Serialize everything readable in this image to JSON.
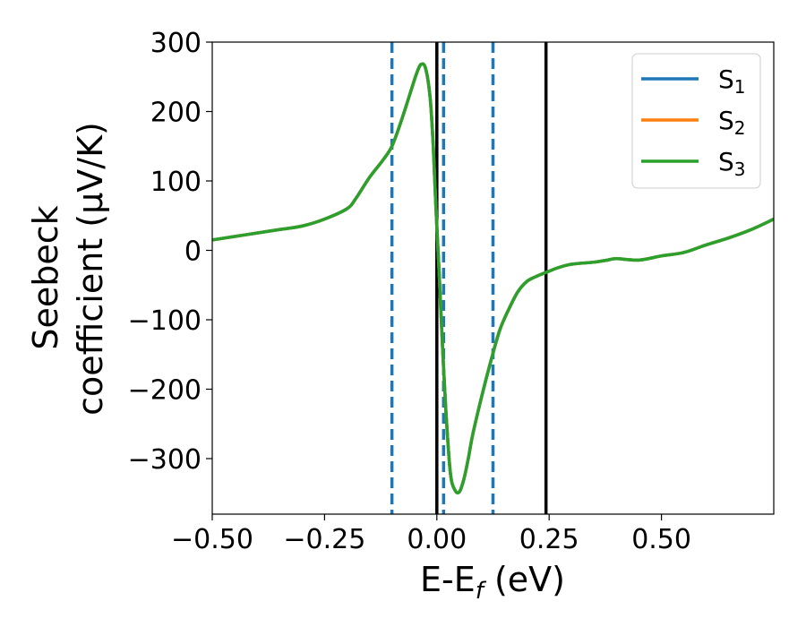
{
  "chart_data": {
    "type": "line",
    "xlabel": {
      "main": "E-E",
      "sub": "f",
      "suffix": " (eV)"
    },
    "ylabel": {
      "line1": "Seebeck",
      "line2": "coefficient  (μV/K)"
    },
    "xlim": [
      -0.5,
      0.75
    ],
    "ylim": [
      -380,
      300
    ],
    "xticks": [
      -0.5,
      -0.25,
      0.0,
      0.25,
      0.5
    ],
    "xtick_labels": [
      "−0.50",
      "−0.25",
      "0.00",
      "0.25",
      "0.50"
    ],
    "yticks": [
      300,
      200,
      100,
      0,
      -100,
      -200,
      -300
    ],
    "ytick_labels": [
      "300",
      "200",
      "100",
      "0",
      "−100",
      "−200",
      "−300"
    ],
    "legend_position": "top-right",
    "series": [
      {
        "name": "S",
        "sub": "1",
        "color": "#1f77b4"
      },
      {
        "name": "S",
        "sub": "2",
        "color": "#ff7f0e"
      },
      {
        "name": "S",
        "sub": "3",
        "color": "#2ca02c"
      }
    ],
    "curve": {
      "x": [
        -0.5,
        -0.45,
        -0.4,
        -0.35,
        -0.3,
        -0.25,
        -0.2,
        -0.18,
        -0.15,
        -0.12,
        -0.1,
        -0.08,
        -0.06,
        -0.045,
        -0.035,
        -0.025,
        -0.015,
        -0.008,
        -0.002,
        0.005,
        0.012,
        0.02,
        0.03,
        0.04,
        0.05,
        0.06,
        0.07,
        0.08,
        0.1,
        0.12,
        0.14,
        0.16,
        0.18,
        0.2,
        0.22,
        0.25,
        0.27,
        0.3,
        0.35,
        0.38,
        0.4,
        0.45,
        0.5,
        0.55,
        0.6,
        0.65,
        0.7,
        0.75
      ],
      "y": [
        15,
        20,
        25,
        30,
        35,
        45,
        60,
        75,
        105,
        130,
        150,
        185,
        225,
        255,
        268,
        262,
        220,
        150,
        60,
        -30,
        -130,
        -230,
        -320,
        -345,
        -348,
        -330,
        -300,
        -265,
        -210,
        -160,
        -115,
        -85,
        -60,
        -45,
        -38,
        -30,
        -25,
        -20,
        -17,
        -14,
        -12,
        -14,
        -8,
        -3,
        8,
        18,
        30,
        45
      ]
    },
    "vlines": [
      {
        "x": -0.1,
        "style": "dashed",
        "color": "#1f77b4"
      },
      {
        "x": 0.015,
        "style": "dashed",
        "color": "#1f77b4"
      },
      {
        "x": 0.125,
        "style": "dashed",
        "color": "#1f77b4"
      },
      {
        "x": 0.0,
        "style": "solid",
        "color": "#000000"
      },
      {
        "x": 0.243,
        "style": "solid",
        "color": "#000000"
      }
    ]
  }
}
